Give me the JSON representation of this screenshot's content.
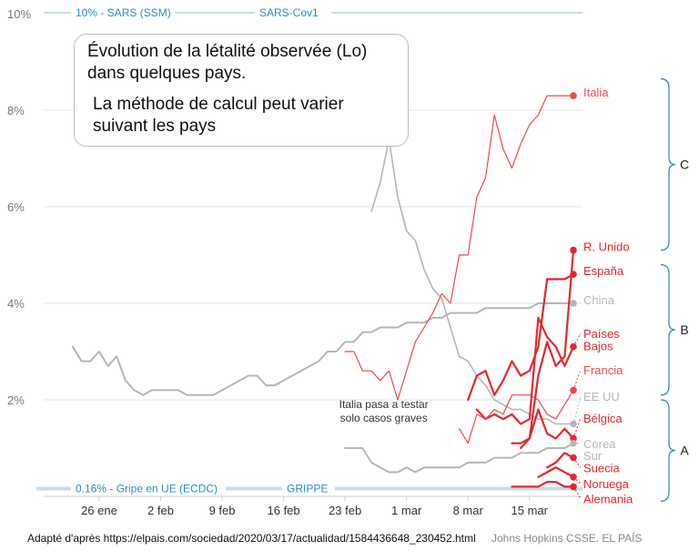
{
  "chart_data": {
    "type": "line",
    "ylim": [
      0,
      10
    ],
    "y_ticks": [
      "2%",
      "4%",
      "6%",
      "8%",
      "10%"
    ],
    "y_tick_values": [
      2,
      4,
      6,
      8,
      10
    ],
    "x_ticks": [
      "26 ene",
      "2 feb",
      "9 feb",
      "16 feb",
      "23 feb",
      "1 mar",
      "8 mar",
      "15 mar"
    ],
    "x_tick_values": [
      26,
      33,
      40,
      47,
      54,
      61,
      68,
      75
    ],
    "x_unit": "day (Jan 26 = 26)",
    "grid": "horizontal",
    "reference_lines": [
      {
        "label": "10% - SARS (SSM)",
        "value": 10,
        "color": "#2a8fc6"
      },
      {
        "label": "SARS-Cov1",
        "value": 10,
        "color": "#2a8fc6"
      },
      {
        "label": "0.16% - Gripe en UE (ECDC)",
        "value": 0.16,
        "color": "#2a8fc6"
      },
      {
        "label": "GRIPPE",
        "value": 0.16,
        "color": "#2a8fc6"
      }
    ],
    "series": [
      {
        "name": "Italia",
        "color": "#f04848",
        "width": 1.2,
        "x": [
          54,
          55,
          56,
          57,
          58,
          59,
          60,
          61,
          62,
          63,
          64,
          65,
          66,
          67,
          68,
          69,
          70,
          71,
          72,
          73,
          74,
          75,
          76,
          77,
          78,
          79,
          80
        ],
        "y": [
          3.0,
          3.0,
          2.6,
          2.6,
          2.4,
          2.6,
          2.0,
          2.6,
          3.2,
          3.5,
          3.8,
          4.2,
          4.0,
          5.0,
          5.0,
          6.2,
          6.6,
          7.9,
          7.2,
          6.8,
          7.3,
          7.7,
          7.9,
          8.3,
          8.3,
          8.3,
          8.3
        ]
      },
      {
        "name": "R. Unido",
        "color": "#e8262c",
        "width": 2.2,
        "x": [
          73,
          74,
          75,
          76,
          77,
          78,
          79,
          80
        ],
        "y": [
          1.1,
          1.1,
          1.2,
          2.5,
          3.2,
          2.7,
          2.9,
          5.1
        ]
      },
      {
        "name": "España",
        "color": "#e8262c",
        "width": 2.2,
        "x": [
          68,
          69,
          70,
          71,
          72,
          73,
          74,
          75,
          76,
          77,
          78,
          79,
          80
        ],
        "y": [
          2.0,
          2.5,
          2.6,
          2.1,
          2.4,
          2.8,
          2.5,
          2.6,
          3.1,
          4.5,
          4.5,
          4.5,
          4.6
        ]
      },
      {
        "name": "China",
        "color": "#b6b6b6",
        "width": 2.0,
        "x": [
          23,
          24,
          25,
          26,
          27,
          28,
          29,
          30,
          31,
          32,
          33,
          34,
          35,
          36,
          37,
          38,
          39,
          40,
          41,
          42,
          43,
          44,
          45,
          46,
          47,
          48,
          49,
          50,
          51,
          52,
          53,
          54,
          55,
          56,
          57,
          58,
          59,
          60,
          61,
          62,
          63,
          64,
          65,
          66,
          67,
          68,
          69,
          70,
          71,
          72,
          73,
          74,
          75,
          76,
          77,
          78,
          79,
          80
        ],
        "y": [
          3.1,
          2.8,
          2.8,
          3.0,
          2.7,
          2.9,
          2.4,
          2.2,
          2.1,
          2.2,
          2.2,
          2.2,
          2.2,
          2.1,
          2.1,
          2.1,
          2.1,
          2.2,
          2.3,
          2.4,
          2.5,
          2.5,
          2.3,
          2.3,
          2.4,
          2.5,
          2.6,
          2.7,
          2.8,
          3.0,
          3.0,
          3.2,
          3.2,
          3.4,
          3.4,
          3.5,
          3.5,
          3.5,
          3.6,
          3.6,
          3.6,
          3.7,
          3.7,
          3.8,
          3.8,
          3.8,
          3.8,
          3.9,
          3.9,
          3.9,
          3.9,
          3.9,
          3.9,
          4.0,
          4.0,
          4.0,
          4.0,
          4.0
        ]
      },
      {
        "name": "Países Bajos",
        "color": "#e8262c",
        "width": 2.2,
        "x": [
          69,
          70,
          71,
          72,
          73,
          74,
          75,
          76,
          77,
          78,
          79,
          80
        ],
        "y": [
          1.8,
          1.6,
          1.7,
          1.6,
          1.7,
          1.5,
          1.6,
          3.7,
          3.3,
          3.1,
          2.7,
          3.1
        ]
      },
      {
        "name": "Francia",
        "color": "#f04848",
        "width": 1.2,
        "x": [
          67,
          68,
          69,
          70,
          71,
          72,
          73,
          74,
          75,
          76,
          77,
          78,
          79,
          80
        ],
        "y": [
          1.4,
          1.1,
          1.7,
          1.6,
          1.8,
          1.7,
          2.1,
          2.1,
          2.1,
          2.0,
          1.7,
          1.6,
          1.9,
          2.2
        ]
      },
      {
        "name": "EE UU",
        "color": "#b6b6b6",
        "width": 1.6,
        "x": [
          57,
          58,
          59,
          60,
          61,
          62,
          63,
          64,
          65,
          66,
          67,
          68,
          69,
          70,
          71,
          72,
          73,
          74,
          75,
          76,
          77,
          78,
          79,
          80
        ],
        "y": [
          5.9,
          6.5,
          7.4,
          6.2,
          5.5,
          5.3,
          4.7,
          4.3,
          4.1,
          3.5,
          2.9,
          2.8,
          2.5,
          2.3,
          2.0,
          1.9,
          1.8,
          1.8,
          1.7,
          1.6,
          1.6,
          1.5,
          1.5,
          1.5
        ]
      },
      {
        "name": "Bélgica",
        "color": "#e8262c",
        "width": 2.2,
        "x": [
          74,
          75,
          76,
          77,
          78,
          79,
          80
        ],
        "y": [
          1.0,
          1.2,
          1.8,
          1.3,
          1.2,
          1.4,
          1.2
        ]
      },
      {
        "name": "Corea Sur",
        "color": "#b6b6b6",
        "width": 2.0,
        "x": [
          54,
          55,
          56,
          57,
          58,
          59,
          60,
          61,
          62,
          63,
          64,
          65,
          66,
          67,
          68,
          69,
          70,
          71,
          72,
          73,
          74,
          75,
          76,
          77,
          78,
          79,
          80
        ],
        "y": [
          1.0,
          1.0,
          1.0,
          0.7,
          0.6,
          0.5,
          0.5,
          0.6,
          0.5,
          0.6,
          0.6,
          0.6,
          0.6,
          0.6,
          0.7,
          0.7,
          0.7,
          0.8,
          0.8,
          0.8,
          0.9,
          0.9,
          0.9,
          1.0,
          1.0,
          1.0,
          1.1
        ]
      },
      {
        "name": "Suecia",
        "color": "#e8262c",
        "width": 2.2,
        "x": [
          77,
          78,
          79,
          80
        ],
        "y": [
          0.6,
          0.7,
          0.9,
          0.8
        ]
      },
      {
        "name": "Noruega",
        "color": "#e8262c",
        "width": 2.2,
        "x": [
          76,
          77,
          78,
          79,
          80
        ],
        "y": [
          0.4,
          0.5,
          0.6,
          0.5,
          0.4
        ]
      },
      {
        "name": "Alemania",
        "color": "#e8262c",
        "width": 2.2,
        "x": [
          73,
          74,
          75,
          76,
          77,
          78,
          79,
          80
        ],
        "y": [
          0.2,
          0.2,
          0.2,
          0.2,
          0.3,
          0.3,
          0.2,
          0.2
        ]
      }
    ],
    "series_labels": [
      {
        "text": "Italia",
        "color": "#f04848",
        "y": 8.3,
        "dot": true,
        "dot_color": "#f04848"
      },
      {
        "text": "R. Unido",
        "color": "#e8262c",
        "y": 5.1,
        "dot": true,
        "dot_color": "#e8262c"
      },
      {
        "text": "España",
        "color": "#e8262c",
        "y": 4.6,
        "dot": true,
        "dot_color": "#e8262c"
      },
      {
        "text": "China",
        "color": "#b6b6b6",
        "y": 4.0,
        "dot": true,
        "dot_color": "#b6b6b6"
      },
      {
        "text": "Países",
        "color": "#e8262c",
        "y": 3.3,
        "dot": true,
        "dot_color": "#e8262c",
        "dot_y": 3.1
      },
      {
        "text": "Bajos",
        "color": "#e8262c",
        "y": 3.05,
        "dot": false
      },
      {
        "text": "Francia",
        "color": "#f04848",
        "y": 2.55,
        "dot": true,
        "dot_color": "#f04848",
        "dot_y": 2.2
      },
      {
        "text": "EE UU",
        "color": "#b6b6b6",
        "y": 2.0,
        "dot": true,
        "dot_color": "#b6b6b6",
        "dot_y": 1.5
      },
      {
        "text": "Bélgica",
        "color": "#e8262c",
        "y": 1.55,
        "dot": true,
        "dot_color": "#e8262c",
        "dot_y": 1.2
      },
      {
        "text": "Corea",
        "color": "#b6b6b6",
        "y": 1.02,
        "dot": true,
        "dot_color": "#b6b6b6",
        "dot_y": 1.1
      },
      {
        "text": "Sur",
        "color": "#b6b6b6",
        "y": 0.77,
        "dot": false
      },
      {
        "text": "Suecia",
        "color": "#e8262c",
        "y": 0.52,
        "dot": true,
        "dot_color": "#e8262c",
        "dot_y": 0.8
      },
      {
        "text": "Noruega",
        "color": "#e8262c",
        "y": 0.19,
        "dot": true,
        "dot_color": "#e8262c",
        "dot_y": 0.4
      },
      {
        "text": "Alemania",
        "color": "#e8262c",
        "y": -0.12,
        "dot": true,
        "dot_color": "#e8262c",
        "dot_y": 0.2
      }
    ],
    "groups": [
      {
        "label": "C",
        "from": 5.1,
        "to": 8.65
      },
      {
        "label": "B",
        "from": 2.1,
        "to": 4.8
      },
      {
        "label": "A",
        "from": -0.1,
        "to": 2.0
      }
    ],
    "annotations": [
      {
        "text": "Italia pasa a testar",
        "x": 61,
        "y": 1.83
      },
      {
        "text": "solo casos graves",
        "x": 61,
        "y": 1.55
      }
    ]
  },
  "note": {
    "line1a": "Évolution de la létalité observée (Lo)",
    "line1b": "dans quelques pays.",
    "line2a": "La méthode de calcul peut varier",
    "line2b": "suivant les pays"
  },
  "footer": {
    "adapted": "Adapté d'après https://elpais.com/sociedad/2020/03/17/actualidad/1584436648_230452.html",
    "credit": "Johns Hopkins CSSE. EL PAÍS"
  }
}
